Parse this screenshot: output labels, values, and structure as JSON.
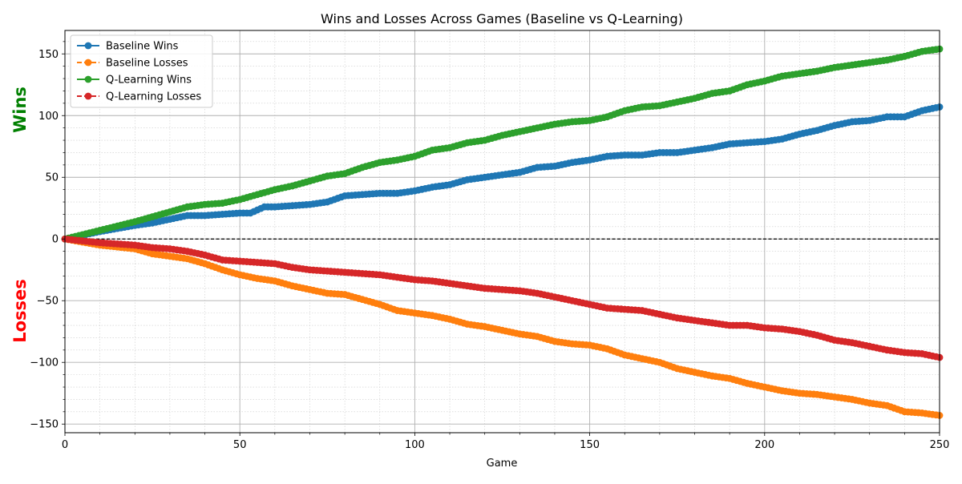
{
  "chart_data": {
    "type": "line",
    "title": "Wins and Losses Across Games (Baseline vs Q-Learning)",
    "xlabel": "Game",
    "ylabel_top": "Wins",
    "ylabel_bottom": "Losses",
    "ylabel_top_color": "#008000",
    "ylabel_bottom_color": "#ff0000",
    "xlim": [
      0,
      250
    ],
    "ylim": [
      -157,
      169
    ],
    "x_ticks": [
      0,
      50,
      100,
      150,
      200,
      250
    ],
    "x_tick_labels": [
      "0",
      "50",
      "100",
      "150",
      "200",
      "250"
    ],
    "y_ticks": [
      -150,
      -100,
      -50,
      0,
      50,
      100,
      150
    ],
    "y_tick_labels": [
      "−150",
      "−100",
      "−50",
      "0",
      "50",
      "100",
      "150"
    ],
    "grid": true,
    "minor_grid": true,
    "zero_line": {
      "y": 0,
      "color": "#000000",
      "style": "dashed"
    },
    "legend_position": "top-left",
    "series": [
      {
        "name": "Baseline Wins",
        "color": "#1f77b4",
        "style": "solid",
        "x": [
          0,
          10,
          20,
          25,
          30,
          35,
          40,
          45,
          50,
          53,
          57,
          60,
          65,
          70,
          75,
          80,
          85,
          90,
          95,
          100,
          105,
          110,
          115,
          120,
          125,
          130,
          135,
          140,
          145,
          150,
          155,
          160,
          165,
          170,
          175,
          180,
          185,
          190,
          195,
          200,
          205,
          210,
          215,
          220,
          225,
          230,
          235,
          240,
          245,
          250
        ],
        "y": [
          0,
          6,
          11,
          13,
          16,
          19,
          19,
          20,
          21,
          21,
          26,
          26,
          27,
          28,
          30,
          35,
          36,
          37,
          37,
          39,
          42,
          44,
          48,
          50,
          52,
          54,
          58,
          59,
          62,
          64,
          67,
          68,
          68,
          70,
          70,
          72,
          74,
          77,
          78,
          79,
          81,
          85,
          88,
          92,
          95,
          96,
          99,
          99,
          104,
          107
        ]
      },
      {
        "name": "Baseline Losses",
        "color": "#ff7f0e",
        "style": "dashed",
        "x": [
          0,
          10,
          20,
          25,
          30,
          35,
          40,
          45,
          50,
          55,
          60,
          65,
          70,
          75,
          80,
          85,
          90,
          95,
          100,
          105,
          110,
          115,
          120,
          125,
          130,
          135,
          140,
          145,
          150,
          155,
          160,
          165,
          170,
          175,
          180,
          185,
          190,
          195,
          200,
          205,
          210,
          215,
          220,
          225,
          230,
          235,
          240,
          245,
          250
        ],
        "y": [
          0,
          -5,
          -8,
          -12,
          -14,
          -16,
          -20,
          -25,
          -29,
          -32,
          -34,
          -38,
          -41,
          -44,
          -45,
          -49,
          -53,
          -58,
          -60,
          -62,
          -65,
          -69,
          -71,
          -74,
          -77,
          -79,
          -83,
          -85,
          -86,
          -89,
          -94,
          -97,
          -100,
          -105,
          -108,
          -111,
          -113,
          -117,
          -120,
          -123,
          -125,
          -126,
          -128,
          -130,
          -133,
          -135,
          -140,
          -141,
          -143
        ]
      },
      {
        "name": "Q-Learning Wins",
        "color": "#2ca02c",
        "style": "solid",
        "x": [
          0,
          10,
          20,
          25,
          30,
          35,
          40,
          45,
          50,
          55,
          60,
          65,
          70,
          75,
          80,
          85,
          90,
          95,
          100,
          105,
          110,
          115,
          120,
          125,
          130,
          135,
          140,
          145,
          150,
          155,
          160,
          165,
          170,
          175,
          180,
          185,
          190,
          195,
          200,
          205,
          210,
          215,
          220,
          225,
          230,
          235,
          240,
          245,
          250
        ],
        "y": [
          0,
          7,
          14,
          18,
          22,
          26,
          28,
          29,
          32,
          36,
          40,
          43,
          47,
          51,
          53,
          58,
          62,
          64,
          67,
          72,
          74,
          78,
          80,
          84,
          87,
          90,
          93,
          95,
          96,
          99,
          104,
          107,
          108,
          111,
          114,
          118,
          120,
          125,
          128,
          132,
          134,
          136,
          139,
          141,
          143,
          145,
          148,
          152,
          154
        ]
      },
      {
        "name": "Q-Learning Losses",
        "color": "#d62728",
        "style": "dashed",
        "x": [
          0,
          10,
          20,
          25,
          30,
          35,
          40,
          45,
          50,
          55,
          60,
          65,
          70,
          75,
          80,
          85,
          90,
          95,
          100,
          105,
          110,
          115,
          120,
          125,
          130,
          135,
          140,
          145,
          150,
          155,
          160,
          165,
          170,
          175,
          180,
          185,
          190,
          195,
          200,
          205,
          210,
          215,
          220,
          225,
          230,
          235,
          240,
          245,
          250
        ],
        "y": [
          0,
          -3,
          -5,
          -7,
          -8,
          -10,
          -13,
          -17,
          -18,
          -19,
          -20,
          -23,
          -25,
          -26,
          -27,
          -28,
          -29,
          -31,
          -33,
          -34,
          -36,
          -38,
          -40,
          -41,
          -42,
          -44,
          -47,
          -50,
          -53,
          -56,
          -57,
          -58,
          -61,
          -64,
          -66,
          -68,
          -70,
          -70,
          -72,
          -73,
          -75,
          -78,
          -82,
          -84,
          -87,
          -90,
          -92,
          -93,
          -96
        ]
      }
    ]
  }
}
